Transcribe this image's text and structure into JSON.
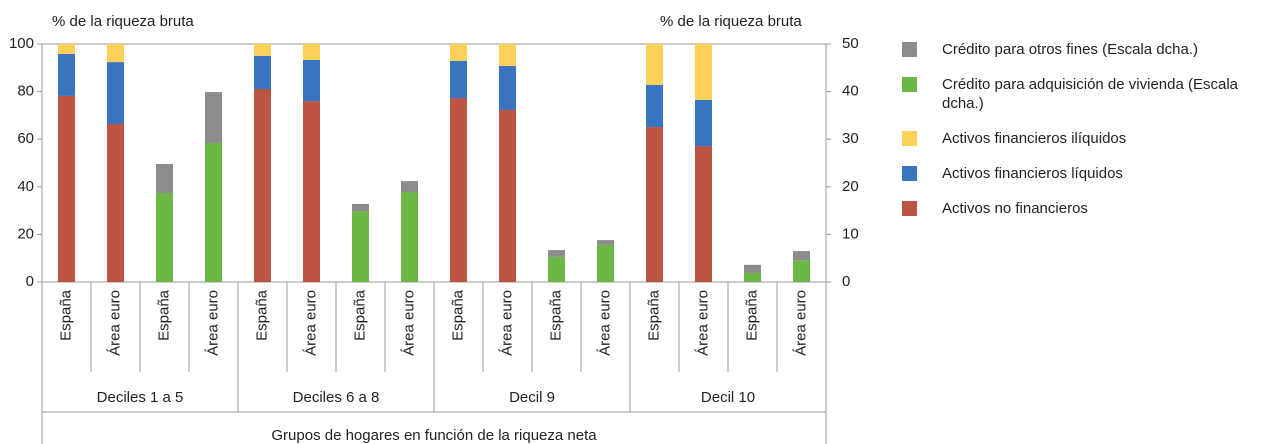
{
  "chart_data": {
    "type": "stacked-bar",
    "ylabel": "% de la riqueza bruta",
    "y2label": "% de la riqueza bruta",
    "xlabel": "Grupos de hogares en función de la riqueza neta",
    "groups": [
      "Deciles 1 a 5",
      "Deciles 6 a 8",
      "Decil 9",
      "Decil 10"
    ],
    "categories": [
      "España",
      "Área euro",
      "España",
      "Área euro",
      "España",
      "Área euro",
      "España",
      "Área euro",
      "España",
      "Área euro",
      "España",
      "Área euro",
      "España",
      "Área euro",
      "España",
      "Área euro"
    ],
    "ylim": [
      0,
      100
    ],
    "yticks": [
      0,
      20,
      40,
      60,
      80,
      100
    ],
    "y2lim": [
      0,
      50
    ],
    "y2ticks": [
      0,
      10,
      20,
      30,
      40,
      50
    ],
    "series": [
      {
        "name": "Activos no financieros",
        "color": "#bd5545",
        "values": [
          78.2,
          66.4,
          null,
          null,
          81.1,
          76,
          null,
          null,
          77.3,
          72.3,
          null,
          null,
          65.1,
          57.1,
          null,
          null
        ]
      },
      {
        "name": "Activos financieros líquidos",
        "color": "#3a73c0",
        "values": [
          17.6,
          26,
          null,
          null,
          13.9,
          17.3,
          null,
          null,
          15.6,
          18.5,
          null,
          null,
          17.7,
          19.4,
          null,
          null
        ]
      },
      {
        "name": "Activos financieros ilíquidos",
        "color": "#fdd05a",
        "values": [
          4.2,
          7.6,
          null,
          null,
          5,
          6.7,
          null,
          null,
          7.1,
          9.2,
          null,
          null,
          17.2,
          23.5,
          null,
          null
        ]
      },
      {
        "name": "Crédito para adquisición de vivienda (Escala dcha.)",
        "color": "#6cb846",
        "axis": "y2",
        "values": [
          null,
          null,
          18.7,
          29.2,
          null,
          null,
          14.9,
          18.9,
          null,
          null,
          5.3,
          7.8,
          null,
          null,
          1.9,
          4.6
        ]
      },
      {
        "name": "Crédito para otros fines (Escala dcha.)",
        "color": "#8c8c8c",
        "axis": "y2",
        "values": [
          null,
          null,
          6.1,
          10.7,
          null,
          null,
          1.5,
          2.3,
          null,
          null,
          1.4,
          1,
          null,
          null,
          1.7,
          1.9
        ]
      }
    ]
  }
}
